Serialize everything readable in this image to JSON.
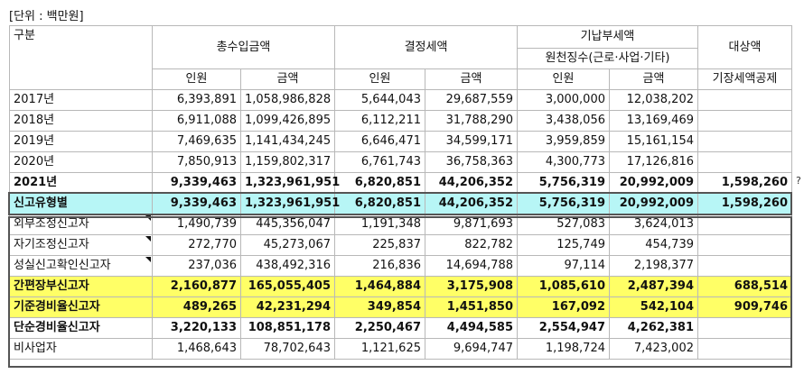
{
  "unit_label": "[단위 : 백만원]",
  "header": {
    "category": "구분",
    "total_income": "총수입금액",
    "determined_tax": "결정세액",
    "prepaid_tax": "기납부세액",
    "withholding": "원천징수(근로·사업·기타)",
    "target_amount": "대상액",
    "persons": "인원",
    "amount": "금액",
    "deduction": "기장세액공제"
  },
  "year_rows": [
    {
      "label": "2017년",
      "c1": "6,393,891",
      "c2": "1,058,986,828",
      "c3": "5,644,043",
      "c4": "29,687,559",
      "c5": "3,000,000",
      "c6": "12,038,202",
      "c7": ""
    },
    {
      "label": "2018년",
      "c1": "6,911,088",
      "c2": "1,099,426,895",
      "c3": "6,112,211",
      "c4": "31,788,290",
      "c5": "3,438,056",
      "c6": "13,169,469",
      "c7": ""
    },
    {
      "label": "2019년",
      "c1": "7,469,635",
      "c2": "1,141,434,245",
      "c3": "6,646,471",
      "c4": "34,599,171",
      "c5": "3,959,859",
      "c6": "15,161,154",
      "c7": ""
    },
    {
      "label": "2020년",
      "c1": "7,850,913",
      "c2": "1,159,802,317",
      "c3": "6,761,743",
      "c4": "36,758,363",
      "c5": "4,300,773",
      "c6": "17,126,816",
      "c7": ""
    },
    {
      "label": "2021년",
      "c1": "9,339,463",
      "c2": "1,323,961,951",
      "c3": "6,820,851",
      "c4": "44,206,352",
      "c5": "5,756,319",
      "c6": "20,992,009",
      "c7": "1,598,260"
    }
  ],
  "type_total": {
    "label": "신고유형별",
    "c1": "9,339,463",
    "c2": "1,323,961,951",
    "c3": "6,820,851",
    "c4": "44,206,352",
    "c5": "5,756,319",
    "c6": "20,992,009",
    "c7": "1,598,260"
  },
  "type_rows": [
    {
      "label": "외부조정신고자",
      "c1": "1,490,739",
      "c2": "445,356,047",
      "c3": "1,191,348",
      "c4": "9,871,693",
      "c5": "527,083",
      "c6": "3,624,013",
      "c7": ""
    },
    {
      "label": "자기조정신고자",
      "c1": "272,770",
      "c2": "45,273,067",
      "c3": "225,837",
      "c4": "822,782",
      "c5": "125,749",
      "c6": "454,739",
      "c7": ""
    },
    {
      "label": "성실신고확인신고자",
      "c1": "237,036",
      "c2": "438,492,316",
      "c3": "216,836",
      "c4": "14,694,788",
      "c5": "97,114",
      "c6": "2,198,377",
      "c7": ""
    },
    {
      "label": "간편장부신고자",
      "c1": "2,160,877",
      "c2": "165,055,405",
      "c3": "1,464,884",
      "c4": "3,175,908",
      "c5": "1,085,610",
      "c6": "2,487,394",
      "c7": "688,514"
    },
    {
      "label": "기준경비율신고자",
      "c1": "489,265",
      "c2": "42,231,294",
      "c3": "349,854",
      "c4": "1,451,850",
      "c5": "167,092",
      "c6": "542,104",
      "c7": "909,746"
    },
    {
      "label": "단순경비율신고자",
      "c1": "3,220,133",
      "c2": "108,851,178",
      "c3": "2,250,467",
      "c4": "4,494,585",
      "c5": "2,554,947",
      "c6": "4,262,381",
      "c7": ""
    },
    {
      "label": "비사업자",
      "c1": "1,468,643",
      "c2": "78,702,643",
      "c3": "1,121,625",
      "c4": "9,694,747",
      "c5": "1,198,724",
      "c6": "7,423,002",
      "c7": ""
    }
  ],
  "edge_mark": "?"
}
